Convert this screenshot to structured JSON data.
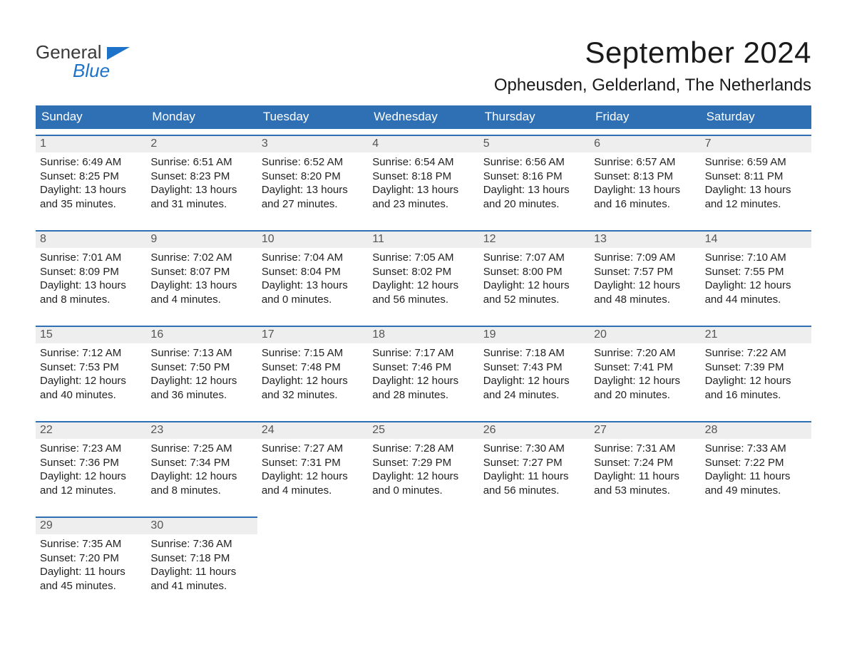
{
  "logo": {
    "text_top": "General",
    "text_bottom": "Blue"
  },
  "title": {
    "month": "September 2024",
    "location": "Opheusden, Gelderland, The Netherlands"
  },
  "colors": {
    "header_blue": "#2f6fb3",
    "day_header_bg": "#eeeeee",
    "day_border": "#2f6fb3",
    "logo_blue": "#1d73c9",
    "background": "#ffffff",
    "text_dark": "#222222"
  },
  "typography": {
    "month_fontsize_pt": 32,
    "location_fontsize_pt": 18,
    "weekday_fontsize_pt": 13,
    "body_fontsize_pt": 11,
    "font_family": "Arial"
  },
  "layout": {
    "columns": 7,
    "rows": 5
  },
  "weekdays": [
    "Sunday",
    "Monday",
    "Tuesday",
    "Wednesday",
    "Thursday",
    "Friday",
    "Saturday"
  ],
  "days": [
    {
      "num": "1",
      "sunrise": "6:49 AM",
      "sunset": "8:25 PM",
      "daylight_l1": "Daylight: 13 hours",
      "daylight_l2": "and 35 minutes."
    },
    {
      "num": "2",
      "sunrise": "6:51 AM",
      "sunset": "8:23 PM",
      "daylight_l1": "Daylight: 13 hours",
      "daylight_l2": "and 31 minutes."
    },
    {
      "num": "3",
      "sunrise": "6:52 AM",
      "sunset": "8:20 PM",
      "daylight_l1": "Daylight: 13 hours",
      "daylight_l2": "and 27 minutes."
    },
    {
      "num": "4",
      "sunrise": "6:54 AM",
      "sunset": "8:18 PM",
      "daylight_l1": "Daylight: 13 hours",
      "daylight_l2": "and 23 minutes."
    },
    {
      "num": "5",
      "sunrise": "6:56 AM",
      "sunset": "8:16 PM",
      "daylight_l1": "Daylight: 13 hours",
      "daylight_l2": "and 20 minutes."
    },
    {
      "num": "6",
      "sunrise": "6:57 AM",
      "sunset": "8:13 PM",
      "daylight_l1": "Daylight: 13 hours",
      "daylight_l2": "and 16 minutes."
    },
    {
      "num": "7",
      "sunrise": "6:59 AM",
      "sunset": "8:11 PM",
      "daylight_l1": "Daylight: 13 hours",
      "daylight_l2": "and 12 minutes."
    },
    {
      "num": "8",
      "sunrise": "7:01 AM",
      "sunset": "8:09 PM",
      "daylight_l1": "Daylight: 13 hours",
      "daylight_l2": "and 8 minutes."
    },
    {
      "num": "9",
      "sunrise": "7:02 AM",
      "sunset": "8:07 PM",
      "daylight_l1": "Daylight: 13 hours",
      "daylight_l2": "and 4 minutes."
    },
    {
      "num": "10",
      "sunrise": "7:04 AM",
      "sunset": "8:04 PM",
      "daylight_l1": "Daylight: 13 hours",
      "daylight_l2": "and 0 minutes."
    },
    {
      "num": "11",
      "sunrise": "7:05 AM",
      "sunset": "8:02 PM",
      "daylight_l1": "Daylight: 12 hours",
      "daylight_l2": "and 56 minutes."
    },
    {
      "num": "12",
      "sunrise": "7:07 AM",
      "sunset": "8:00 PM",
      "daylight_l1": "Daylight: 12 hours",
      "daylight_l2": "and 52 minutes."
    },
    {
      "num": "13",
      "sunrise": "7:09 AM",
      "sunset": "7:57 PM",
      "daylight_l1": "Daylight: 12 hours",
      "daylight_l2": "and 48 minutes."
    },
    {
      "num": "14",
      "sunrise": "7:10 AM",
      "sunset": "7:55 PM",
      "daylight_l1": "Daylight: 12 hours",
      "daylight_l2": "and 44 minutes."
    },
    {
      "num": "15",
      "sunrise": "7:12 AM",
      "sunset": "7:53 PM",
      "daylight_l1": "Daylight: 12 hours",
      "daylight_l2": "and 40 minutes."
    },
    {
      "num": "16",
      "sunrise": "7:13 AM",
      "sunset": "7:50 PM",
      "daylight_l1": "Daylight: 12 hours",
      "daylight_l2": "and 36 minutes."
    },
    {
      "num": "17",
      "sunrise": "7:15 AM",
      "sunset": "7:48 PM",
      "daylight_l1": "Daylight: 12 hours",
      "daylight_l2": "and 32 minutes."
    },
    {
      "num": "18",
      "sunrise": "7:17 AM",
      "sunset": "7:46 PM",
      "daylight_l1": "Daylight: 12 hours",
      "daylight_l2": "and 28 minutes."
    },
    {
      "num": "19",
      "sunrise": "7:18 AM",
      "sunset": "7:43 PM",
      "daylight_l1": "Daylight: 12 hours",
      "daylight_l2": "and 24 minutes."
    },
    {
      "num": "20",
      "sunrise": "7:20 AM",
      "sunset": "7:41 PM",
      "daylight_l1": "Daylight: 12 hours",
      "daylight_l2": "and 20 minutes."
    },
    {
      "num": "21",
      "sunrise": "7:22 AM",
      "sunset": "7:39 PM",
      "daylight_l1": "Daylight: 12 hours",
      "daylight_l2": "and 16 minutes."
    },
    {
      "num": "22",
      "sunrise": "7:23 AM",
      "sunset": "7:36 PM",
      "daylight_l1": "Daylight: 12 hours",
      "daylight_l2": "and 12 minutes."
    },
    {
      "num": "23",
      "sunrise": "7:25 AM",
      "sunset": "7:34 PM",
      "daylight_l1": "Daylight: 12 hours",
      "daylight_l2": "and 8 minutes."
    },
    {
      "num": "24",
      "sunrise": "7:27 AM",
      "sunset": "7:31 PM",
      "daylight_l1": "Daylight: 12 hours",
      "daylight_l2": "and 4 minutes."
    },
    {
      "num": "25",
      "sunrise": "7:28 AM",
      "sunset": "7:29 PM",
      "daylight_l1": "Daylight: 12 hours",
      "daylight_l2": "and 0 minutes."
    },
    {
      "num": "26",
      "sunrise": "7:30 AM",
      "sunset": "7:27 PM",
      "daylight_l1": "Daylight: 11 hours",
      "daylight_l2": "and 56 minutes."
    },
    {
      "num": "27",
      "sunrise": "7:31 AM",
      "sunset": "7:24 PM",
      "daylight_l1": "Daylight: 11 hours",
      "daylight_l2": "and 53 minutes."
    },
    {
      "num": "28",
      "sunrise": "7:33 AM",
      "sunset": "7:22 PM",
      "daylight_l1": "Daylight: 11 hours",
      "daylight_l2": "and 49 minutes."
    },
    {
      "num": "29",
      "sunrise": "7:35 AM",
      "sunset": "7:20 PM",
      "daylight_l1": "Daylight: 11 hours",
      "daylight_l2": "and 45 minutes."
    },
    {
      "num": "30",
      "sunrise": "7:36 AM",
      "sunset": "7:18 PM",
      "daylight_l1": "Daylight: 11 hours",
      "daylight_l2": "and 41 minutes."
    }
  ],
  "labels": {
    "sunrise_prefix": "Sunrise: ",
    "sunset_prefix": "Sunset: "
  },
  "calendar_grid": {
    "start_offset": 0,
    "total_cells": 35
  }
}
